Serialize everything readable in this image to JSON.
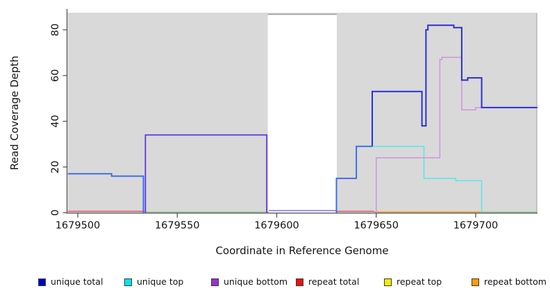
{
  "chart_data": {
    "type": "line",
    "subtype": "step-coverage-plot",
    "title": "",
    "xlabel": "Coordinate in Reference Genome",
    "ylabel": "Read Coverage Depth",
    "xlim": [
      1679494.8,
      1679730.7
    ],
    "ylim": [
      0,
      87.3
    ],
    "x_ticks": [
      1679500,
      1679550,
      1679600,
      1679650,
      1679700
    ],
    "x_tick_labels": [
      "1679500",
      "1679550",
      "1679600",
      "1679650",
      "1679700"
    ],
    "y_ticks": [
      0,
      20,
      40,
      60,
      80
    ],
    "y_tick_labels": [
      "0",
      "20",
      "40",
      "60",
      "80"
    ],
    "grid": false,
    "plot_bg_color": "#d9d9d9",
    "outer_bg_color": "#ffffff",
    "masked_region": {
      "x1": 1679596,
      "x2": 1679630,
      "color": "#ffffff",
      "top_line_color": "#9a9a9a"
    },
    "series": [
      {
        "name": "baseline-green-mid",
        "color": "#86cc8e",
        "width": 1.4,
        "dy": -1,
        "points": [
          [
            1679533,
            0
          ],
          [
            1679596,
            0
          ]
        ]
      },
      {
        "name": "baseline-green-right",
        "color": "#86cc8e",
        "width": 1.4,
        "dy": -1,
        "points": [
          [
            1679703,
            0
          ],
          [
            1679731,
            0
          ]
        ]
      },
      {
        "name": "repeat-total-left",
        "color": "#e34b63",
        "width": 1.4,
        "dy": -2,
        "points": [
          [
            1679495,
            0
          ],
          [
            1679533,
            0
          ]
        ]
      },
      {
        "name": "repeat-total-mid",
        "color": "#e34b63",
        "width": 1.4,
        "dy": -2,
        "points": [
          [
            1679630,
            0
          ],
          [
            1679649,
            0
          ]
        ]
      },
      {
        "name": "repeat-bottom",
        "color": "#ff9a1f",
        "width": 1.5,
        "dy": -1,
        "points": [
          [
            1679649,
            0
          ],
          [
            1679703,
            0
          ]
        ]
      },
      {
        "name": "masked-baseline",
        "color": "#8379ea",
        "width": 1.6,
        "dy": -3,
        "points": [
          [
            1679596,
            0
          ],
          [
            1679630,
            0
          ]
        ]
      },
      {
        "name": "unique-bottom-rect",
        "color": "#5a35df",
        "width": 1.8,
        "dy": 0,
        "points": [
          [
            1679534,
            0
          ],
          [
            1679534,
            34
          ],
          [
            1679595,
            34
          ],
          [
            1679595,
            0
          ]
        ]
      },
      {
        "name": "unique-top",
        "color": "#58e6e6",
        "width": 1.5,
        "dy": 0,
        "points": [
          [
            1679648,
            29
          ],
          [
            1679674,
            29
          ],
          [
            1679674,
            15
          ],
          [
            1679690,
            15
          ],
          [
            1679690,
            14
          ],
          [
            1679703,
            14
          ],
          [
            1679703,
            0
          ]
        ]
      },
      {
        "name": "unique-bottom-right",
        "color": "#cf94e2",
        "width": 1.5,
        "dy": 0,
        "points": [
          [
            1679650,
            0
          ],
          [
            1679650,
            24
          ],
          [
            1679682,
            24
          ],
          [
            1679682,
            67
          ],
          [
            1679683,
            67
          ],
          [
            1679683,
            68
          ],
          [
            1679693,
            68
          ],
          [
            1679693,
            45
          ],
          [
            1679700,
            45
          ],
          [
            1679700,
            46
          ],
          [
            1679731,
            46
          ]
        ]
      },
      {
        "name": "unique-total-left",
        "color": "#3f6ee8",
        "width": 2,
        "dy": 0,
        "points": [
          [
            1679495,
            17
          ],
          [
            1679517,
            17
          ],
          [
            1679517,
            16
          ],
          [
            1679533,
            16
          ],
          [
            1679533,
            0
          ]
        ]
      },
      {
        "name": "unique-total-right-low",
        "color": "#3f6ee8",
        "width": 2,
        "dy": 0,
        "points": [
          [
            1679630,
            0
          ],
          [
            1679630,
            15
          ],
          [
            1679640,
            15
          ],
          [
            1679640,
            29
          ],
          [
            1679648,
            29
          ]
        ]
      },
      {
        "name": "unique-total-right",
        "color": "#2b2fd6",
        "width": 2,
        "dy": 0,
        "points": [
          [
            1679648,
            29
          ],
          [
            1679648,
            53
          ],
          [
            1679673,
            53
          ],
          [
            1679673,
            38
          ],
          [
            1679675,
            38
          ],
          [
            1679675,
            80
          ],
          [
            1679676,
            80
          ],
          [
            1679676,
            82
          ],
          [
            1679689,
            82
          ],
          [
            1679689,
            81
          ],
          [
            1679693,
            81
          ],
          [
            1679693,
            58
          ],
          [
            1679696,
            58
          ],
          [
            1679696,
            59
          ],
          [
            1679703,
            59
          ],
          [
            1679703,
            46
          ],
          [
            1679731,
            46
          ]
        ]
      }
    ],
    "legend": [
      {
        "label": "unique total",
        "color": "#0000cc"
      },
      {
        "label": "unique top",
        "color": "#00e5ee"
      },
      {
        "label": "unique bottom",
        "color": "#9b2fd0"
      },
      {
        "label": "repeat total",
        "color": "#ee1111"
      },
      {
        "label": "repeat top",
        "color": "#f2ee00"
      },
      {
        "label": "repeat bottom",
        "color": "#ff9d00"
      }
    ],
    "legend_position": "bottom"
  }
}
